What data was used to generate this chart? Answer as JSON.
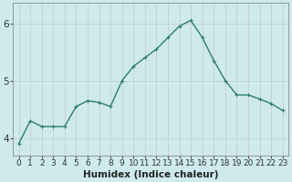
{
  "x": [
    0,
    1,
    2,
    3,
    4,
    5,
    6,
    7,
    8,
    9,
    10,
    11,
    12,
    13,
    14,
    15,
    16,
    17,
    18,
    19,
    20,
    21,
    22,
    23
  ],
  "y": [
    3.9,
    4.3,
    4.2,
    4.2,
    4.2,
    4.55,
    4.65,
    4.62,
    4.55,
    5.0,
    5.25,
    5.4,
    5.55,
    5.75,
    5.95,
    6.05,
    5.75,
    5.35,
    5.0,
    4.75,
    4.75,
    4.68,
    4.6,
    4.48
  ],
  "line_color": "#2e7d6e",
  "marker": "+",
  "marker_size": 3,
  "background_color": "#ceeaec",
  "grid_color": "#c8c8c8",
  "xlabel": "Humidex (Indice chaleur)",
  "ylim": [
    3.7,
    6.35
  ],
  "xlim": [
    -0.5,
    23.5
  ],
  "yticks": [
    4,
    5,
    6
  ],
  "xticks": [
    0,
    1,
    2,
    3,
    4,
    5,
    6,
    7,
    8,
    9,
    10,
    11,
    12,
    13,
    14,
    15,
    16,
    17,
    18,
    19,
    20,
    21,
    22,
    23
  ],
  "xlabel_fontsize": 7.5,
  "tick_fontsize": 6.5,
  "ytick_fontsize": 7.5,
  "linewidth": 1.0,
  "markeredgewidth": 0.8
}
